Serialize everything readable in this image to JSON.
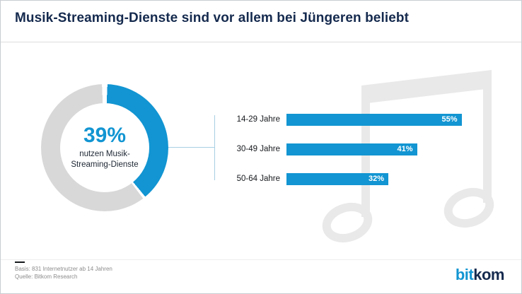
{
  "title": "Musik-Streaming-Dienste sind vor allem bei Jüngeren beliebt",
  "donut": {
    "value": 39,
    "percent_label": "39%",
    "caption_line1": "nutzen Musik-",
    "caption_line2": "Streaming-Dienste"
  },
  "chart_data": {
    "type": "bar",
    "orientation": "horizontal",
    "title": "Musik-Streaming-Dienste sind vor allem bei Jüngeren beliebt",
    "categories": [
      "14-29 Jahre",
      "30-49 Jahre",
      "50-64 Jahre"
    ],
    "values": [
      55,
      41,
      32
    ],
    "unit": "%",
    "xlim": [
      0,
      60
    ],
    "legend": "none",
    "grid": false,
    "annotations": {
      "donut_percent": 39,
      "donut_caption": "nutzen Musik-Streaming-Dienste"
    }
  },
  "footer": {
    "basis": "Basis: 831 Internetnutzer ab 14 Jahren",
    "source": "Quelle: Bitkom Research"
  },
  "logo": {
    "part1": "bit",
    "part2": "kom"
  },
  "icons": {
    "watermark": "music-note-icon"
  },
  "colors": {
    "accent": "#1295d2",
    "navy": "#152a4e",
    "ring": "#d8d8d8",
    "line": "#a8cfe4",
    "watermark": "#e9e9e9",
    "footnote": "#8c8c8c"
  }
}
